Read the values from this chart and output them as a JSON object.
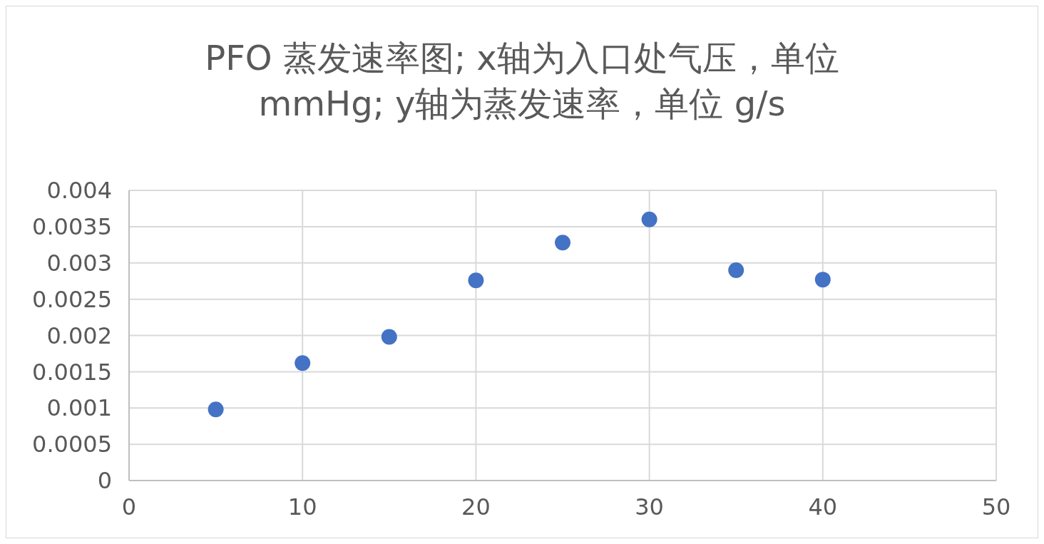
{
  "chart_data": {
    "type": "scatter",
    "title": "PFO 蒸发速率图; x轴为入口处气压，单位 mmHg; y轴为蒸发速率，单位 g/s",
    "x": [
      5,
      10,
      15,
      20,
      25,
      30,
      35,
      40
    ],
    "series": [
      {
        "color": "#4472c4",
        "values": [
          0.00098,
          0.00162,
          0.00198,
          0.00276,
          0.00328,
          0.0036,
          0.0029,
          0.00277
        ]
      }
    ],
    "xlim": [
      0,
      50
    ],
    "xticks": [
      0,
      10,
      20,
      30,
      40,
      50
    ],
    "ylim": [
      0,
      0.004
    ],
    "yticks": [
      0,
      0.0005,
      0.001,
      0.0015,
      0.002,
      0.0025,
      0.003,
      0.0035,
      0.004
    ],
    "grid": true,
    "marker": "circle"
  }
}
